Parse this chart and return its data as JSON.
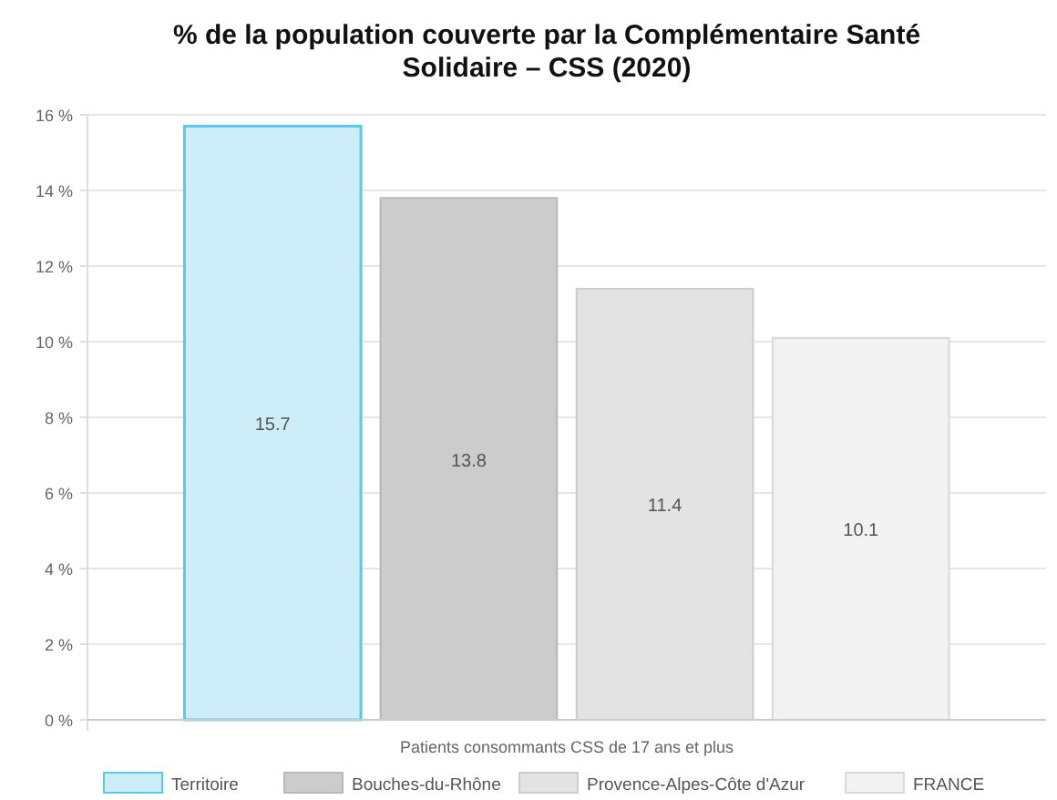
{
  "chart_data": {
    "type": "bar",
    "title": "% de la population couverte par la Complémentaire Santé Solidaire – CSS (2020)",
    "categories": [
      "Patients consommants CSS de 17 ans et plus"
    ],
    "series": [
      {
        "name": "Territoire",
        "color": "#cdeef8",
        "values": [
          15.7
        ]
      },
      {
        "name": "Bouches-du-Rhône",
        "color": "#cccccc",
        "values": [
          13.8
        ]
      },
      {
        "name": "Provence-Alpes-Côte d'Azur",
        "color": "#e3e3e3",
        "values": [
          11.4
        ]
      },
      {
        "name": "FRANCE",
        "color": "#f2f2f2",
        "values": [
          10.1
        ]
      }
    ],
    "ylim": [
      0,
      16
    ],
    "yticks": [
      {
        "value": 0,
        "label": "0 %"
      },
      {
        "value": 2,
        "label": "2 %"
      },
      {
        "value": 4,
        "label": "4 %"
      },
      {
        "value": 6,
        "label": "6 %"
      },
      {
        "value": 8,
        "label": "8 %"
      },
      {
        "value": 10,
        "label": "10 %"
      },
      {
        "value": 12,
        "label": "12 %"
      },
      {
        "value": 14,
        "label": "14 %"
      },
      {
        "value": 16,
        "label": "16 %"
      }
    ],
    "grid": "y",
    "legend": "bottom",
    "data_labels": true
  }
}
